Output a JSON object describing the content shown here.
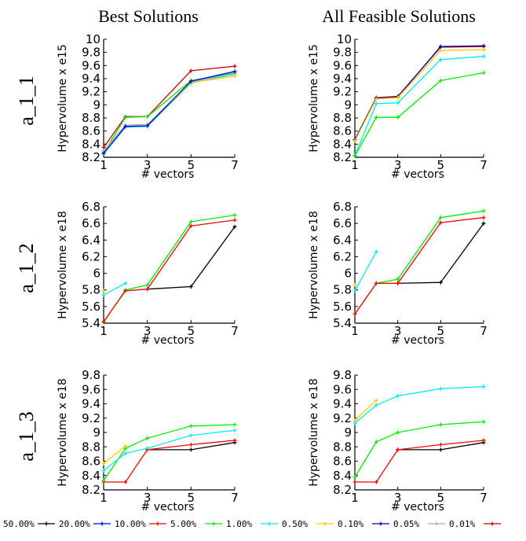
{
  "figure": {
    "column_titles": [
      "Best Solutions",
      "All Feasible Solutions"
    ],
    "row_labels": [
      "a_1_1",
      "a_1_2",
      "a_1_3"
    ]
  },
  "legend": [
    {
      "label": "50.00%",
      "color": "#000000"
    },
    {
      "label": "20.00%",
      "color": "#0000ff"
    },
    {
      "label": "10.00%",
      "color": "#ff0000"
    },
    {
      "label": "5.00%",
      "color": "#00ee00"
    },
    {
      "label": "1.00%",
      "color": "#00eeee"
    },
    {
      "label": "0.50%",
      "color": "#ffcc00"
    },
    {
      "label": "0.10%",
      "color": "#0000aa"
    },
    {
      "label": "0.05%",
      "color": "#aaaaaa"
    },
    {
      "label": "0.01%",
      "color": "#cc0000"
    }
  ],
  "chart_data": [
    {
      "type": "line",
      "row": "a_1_1",
      "column": "Best Solutions",
      "xlabel": "# vectors",
      "ylabel": "Hypervolume x e15",
      "xlim": [
        1,
        7
      ],
      "ylim": [
        8.2,
        10
      ],
      "xticks": [
        1,
        3,
        5,
        7
      ],
      "yticks": [
        "8.2",
        "8.4",
        "8.6",
        "8.8",
        "9",
        "9.2",
        "9.4",
        "9.6",
        "9.8",
        "10"
      ],
      "series": [
        {
          "color": "#cc0000",
          "marker": "+",
          "x": [
            1,
            2,
            3,
            5,
            7
          ],
          "y": [
            8.35,
            8.82,
            8.82,
            9.52,
            9.59
          ]
        },
        {
          "color": "#00ee00",
          "marker": "+",
          "x": [
            1,
            2,
            3,
            5,
            7
          ],
          "y": [
            8.27,
            8.81,
            8.82,
            9.37,
            9.49
          ]
        },
        {
          "color": "#00eeee",
          "marker": "+",
          "x": [
            1,
            2,
            3,
            5,
            7
          ],
          "y": [
            8.25,
            8.66,
            8.67,
            9.33,
            9.47
          ]
        },
        {
          "color": "#aaaaaa",
          "marker": "+",
          "x": [
            1,
            2,
            3,
            5,
            7
          ],
          "y": [
            8.3,
            8.69,
            8.7,
            9.35,
            9.48
          ]
        },
        {
          "color": "#ffcc00",
          "marker": "+",
          "x": [
            1,
            2,
            3,
            5,
            7
          ],
          "y": [
            8.26,
            8.67,
            8.68,
            9.34,
            9.44
          ]
        },
        {
          "color": "#0000ff",
          "marker": "+",
          "x": [
            1,
            2,
            3,
            5,
            7
          ],
          "y": [
            8.26,
            8.67,
            8.68,
            9.36,
            9.51
          ]
        }
      ]
    },
    {
      "type": "line",
      "row": "a_1_1",
      "column": "All Feasible Solutions",
      "xlabel": "# vectors",
      "ylabel": "Hypervolume x e15",
      "xlim": [
        1,
        7
      ],
      "ylim": [
        8.2,
        10
      ],
      "xticks": [
        1,
        3,
        5,
        7
      ],
      "yticks": [
        "8.2",
        "8.4",
        "8.6",
        "8.8",
        "9",
        "9.2",
        "9.4",
        "9.6",
        "9.8",
        "10"
      ],
      "series": [
        {
          "color": "#cc0000",
          "marker": "+",
          "x": [
            1,
            2,
            3,
            5,
            7
          ],
          "y": [
            8.47,
            9.11,
            9.13,
            9.88,
            9.89
          ]
        },
        {
          "color": "#0000aa",
          "marker": "+",
          "x": [
            1,
            2,
            3,
            5,
            7
          ],
          "y": [
            8.47,
            9.1,
            9.12,
            9.89,
            9.9
          ]
        },
        {
          "color": "#ffcc00",
          "marker": "+",
          "x": [
            1,
            2,
            3,
            5,
            7
          ],
          "y": [
            8.45,
            9.09,
            9.11,
            9.83,
            9.84
          ]
        },
        {
          "color": "#00eeee",
          "marker": "+",
          "x": [
            1,
            2,
            3,
            5,
            7
          ],
          "y": [
            8.23,
            9.02,
            9.03,
            9.69,
            9.74
          ]
        },
        {
          "color": "#00ee00",
          "marker": "+",
          "x": [
            1,
            2,
            3,
            5,
            7
          ],
          "y": [
            8.22,
            8.81,
            8.81,
            9.37,
            9.49
          ]
        }
      ]
    },
    {
      "type": "line",
      "row": "a_1_2",
      "column": "Best Solutions",
      "xlabel": "# vectors",
      "ylabel": "Hypervolume x e18",
      "xlim": [
        1,
        7
      ],
      "ylim": [
        5.4,
        6.8
      ],
      "xticks": [
        1,
        3,
        5,
        7
      ],
      "yticks": [
        "5.4",
        "5.6",
        "5.8",
        "6",
        "6.2",
        "6.4",
        "6.6",
        "6.8"
      ],
      "series": [
        {
          "color": "#000000",
          "marker": "+",
          "x": [
            3,
            5,
            7
          ],
          "y": [
            5.81,
            5.84,
            6.56
          ]
        },
        {
          "color": "#00ee00",
          "marker": "+",
          "x": [
            1,
            2,
            3,
            5,
            7
          ],
          "y": [
            5.41,
            5.8,
            5.86,
            6.62,
            6.7
          ]
        },
        {
          "color": "#ff0000",
          "marker": "+",
          "x": [
            1,
            2,
            3,
            5,
            7
          ],
          "y": [
            5.42,
            5.79,
            5.81,
            6.57,
            6.64
          ]
        },
        {
          "color": "#00eeee",
          "marker": "+",
          "x": [
            1,
            2
          ],
          "y": [
            5.74,
            5.88
          ]
        },
        {
          "color": "#ffcc00",
          "marker": "+",
          "x": [
            1
          ],
          "y": [
            5.79
          ]
        }
      ]
    },
    {
      "type": "line",
      "row": "a_1_2",
      "column": "All Feasible Solutions",
      "xlabel": "# vectors",
      "ylabel": "Hypervolume x e18",
      "xlim": [
        1,
        7
      ],
      "ylim": [
        5.4,
        6.8
      ],
      "xticks": [
        1,
        3,
        5,
        7
      ],
      "yticks": [
        "5.4",
        "5.6",
        "5.8",
        "6",
        "6.2",
        "6.4",
        "6.6",
        "6.8"
      ],
      "series": [
        {
          "color": "#000000",
          "marker": "+",
          "x": [
            3,
            5,
            7
          ],
          "y": [
            5.88,
            5.89,
            6.6
          ]
        },
        {
          "color": "#00ee00",
          "marker": "+",
          "x": [
            1,
            2,
            3,
            5,
            7
          ],
          "y": [
            5.51,
            5.88,
            5.93,
            6.67,
            6.75
          ]
        },
        {
          "color": "#ff0000",
          "marker": "+",
          "x": [
            1,
            2,
            3,
            5,
            7
          ],
          "y": [
            5.51,
            5.88,
            5.88,
            6.61,
            6.67
          ]
        },
        {
          "color": "#00eeee",
          "marker": "+",
          "x": [
            1,
            2
          ],
          "y": [
            5.79,
            6.26
          ]
        },
        {
          "color": "#ffcc00",
          "marker": "+",
          "x": [
            1
          ],
          "y": [
            5.86
          ]
        }
      ]
    },
    {
      "type": "line",
      "row": "a_1_3",
      "column": "Best Solutions",
      "xlabel": "# vectors",
      "ylabel": "Hypervolume x e18",
      "xlim": [
        1,
        7
      ],
      "ylim": [
        8.2,
        9.8
      ],
      "xticks": [
        1,
        3,
        5,
        7
      ],
      "yticks": [
        "8.2",
        "8.4",
        "8.6",
        "8.8",
        "9",
        "9.2",
        "9.4",
        "9.6",
        "9.8"
      ],
      "series": [
        {
          "color": "#000000",
          "marker": "+",
          "x": [
            3,
            5,
            7
          ],
          "y": [
            8.76,
            8.76,
            8.86
          ]
        },
        {
          "color": "#ff0000",
          "marker": "+",
          "x": [
            1,
            2,
            3,
            5,
            7
          ],
          "y": [
            8.31,
            8.31,
            8.76,
            8.83,
            8.89
          ]
        },
        {
          "color": "#00ee00",
          "marker": "+",
          "x": [
            1,
            2,
            3,
            5,
            7
          ],
          "y": [
            8.33,
            8.78,
            8.92,
            9.09,
            9.11
          ]
        },
        {
          "color": "#00eeee",
          "marker": "+",
          "x": [
            1,
            2,
            3,
            5,
            7
          ],
          "y": [
            8.47,
            8.71,
            8.78,
            8.96,
            9.03
          ]
        },
        {
          "color": "#ffcc00",
          "marker": "+",
          "x": [
            1,
            2
          ],
          "y": [
            8.57,
            8.81
          ]
        }
      ]
    },
    {
      "type": "line",
      "row": "a_1_3",
      "column": "All Feasible Solutions",
      "xlabel": "# vectors",
      "ylabel": "Hypervolume x e18",
      "xlim": [
        1,
        7
      ],
      "ylim": [
        8.2,
        9.8
      ],
      "xticks": [
        1,
        3,
        5,
        7
      ],
      "yticks": [
        "8.2",
        "8.4",
        "8.6",
        "8.8",
        "9",
        "9.2",
        "9.4",
        "9.6",
        "9.8"
      ],
      "series": [
        {
          "color": "#000000",
          "marker": "+",
          "x": [
            3,
            5,
            7
          ],
          "y": [
            8.76,
            8.76,
            8.86
          ]
        },
        {
          "color": "#ff0000",
          "marker": "+",
          "x": [
            1,
            2,
            3,
            5,
            7
          ],
          "y": [
            8.31,
            8.31,
            8.76,
            8.83,
            8.89
          ]
        },
        {
          "color": "#00ee00",
          "marker": "+",
          "x": [
            1,
            2,
            3,
            5,
            7
          ],
          "y": [
            8.38,
            8.87,
            9.0,
            9.11,
            9.15
          ]
        },
        {
          "color": "#00eeee",
          "marker": "+",
          "x": [
            1,
            2,
            3,
            5,
            7
          ],
          "y": [
            9.13,
            9.38,
            9.51,
            9.61,
            9.64
          ]
        },
        {
          "color": "#ffcc00",
          "marker": "+",
          "x": [
            1,
            2
          ],
          "y": [
            9.17,
            9.45
          ]
        }
      ]
    }
  ]
}
